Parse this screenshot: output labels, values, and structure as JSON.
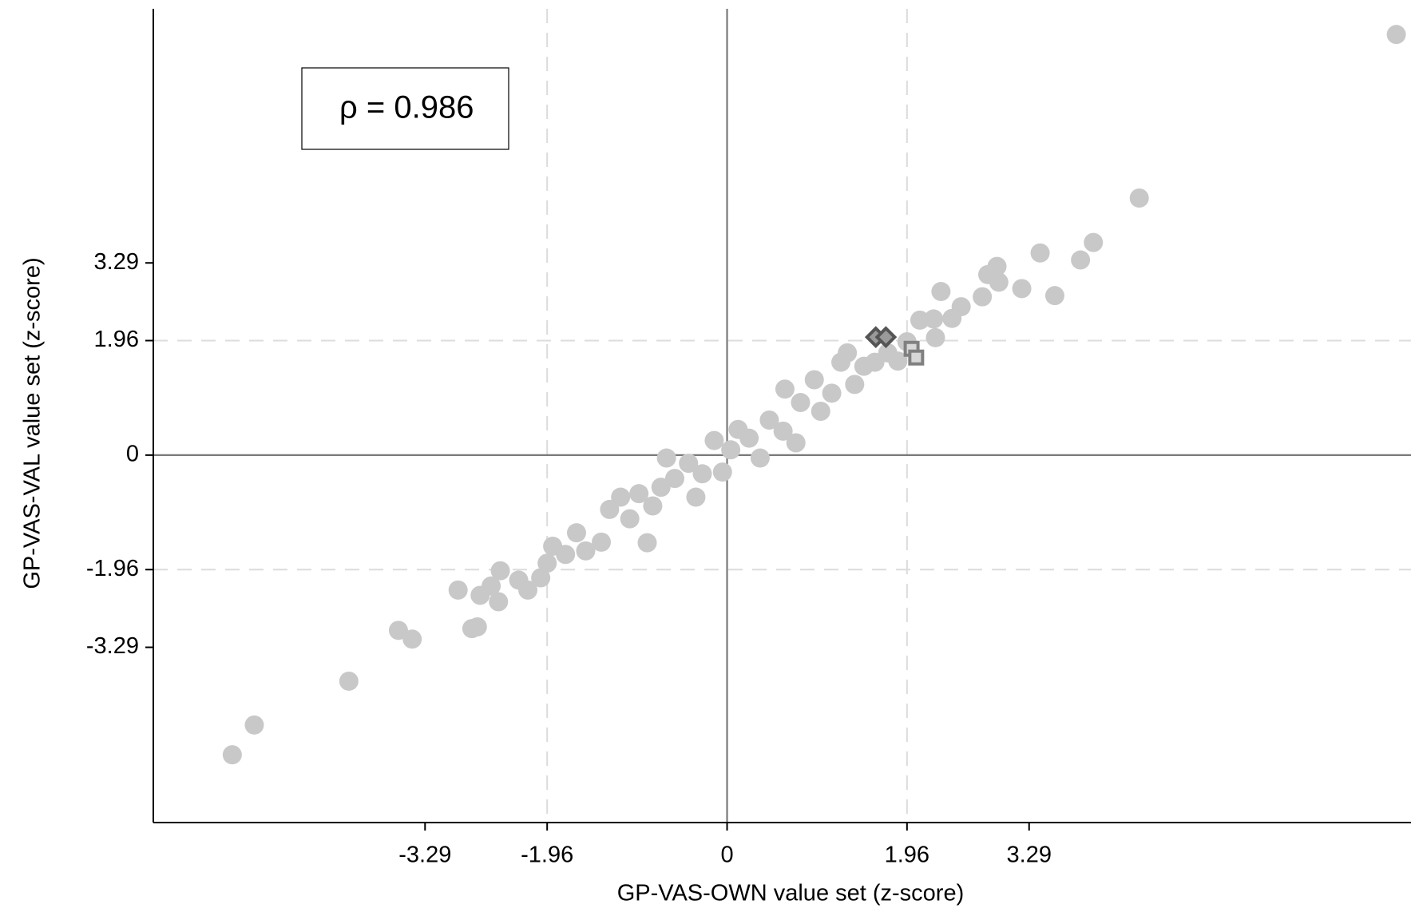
{
  "chart_data": {
    "type": "scatter",
    "x_label": "GP-VAS-OWN value set (z-score)",
    "y_label": "GP-VAS-VAL value set (z-score)",
    "annotation": "ρ = 0.986",
    "xlim": [
      -6.25,
      7.45
    ],
    "ylim": [
      -6.29,
      7.64
    ],
    "xticks": [
      -3.29,
      -1.96,
      0,
      1.96,
      3.29
    ],
    "yticks": [
      -3.29,
      -1.96,
      0,
      1.96,
      3.29
    ],
    "reference_lines": {
      "x": [
        {
          "value": -1.96,
          "style": "dashed"
        },
        {
          "value": 0,
          "style": "solid"
        },
        {
          "value": 1.96,
          "style": "dashed"
        }
      ],
      "y": [
        {
          "value": -1.96,
          "style": "dashed"
        },
        {
          "value": 0,
          "style": "solid"
        },
        {
          "value": 1.96,
          "style": "dashed"
        }
      ]
    },
    "series": [
      {
        "color": "#c8c8c8",
        "marker": "circle",
        "x": [
          -5.39,
          -5.15,
          -4.12,
          -3.58,
          -3.43,
          -2.93,
          -2.78,
          -2.72,
          -2.69,
          -2.57,
          -2.49,
          -2.47,
          -2.27,
          -2.17,
          -2.03,
          -1.96,
          -1.9,
          -1.76,
          -1.64,
          -1.54,
          -1.37,
          -1.28,
          -1.16,
          -1.06,
          -0.87,
          -0.96,
          -0.81,
          -0.66,
          -0.72,
          -0.57,
          -0.42,
          -0.34,
          -0.27,
          -0.14,
          -0.05,
          0.04,
          0.12,
          0.24,
          0.36,
          0.46,
          0.61,
          0.63,
          0.75,
          0.8,
          0.95,
          1.02,
          1.14,
          1.24,
          1.31,
          1.39,
          1.49,
          1.61,
          1.75,
          1.86,
          1.96,
          2.1,
          2.25,
          2.27,
          2.33,
          2.45,
          2.55,
          2.78,
          2.84,
          2.94,
          2.96,
          3.21,
          3.41,
          3.57,
          3.85,
          3.99,
          4.49,
          7.29
        ],
        "values": [
          -5.13,
          -4.62,
          -3.87,
          -3.0,
          -3.15,
          -2.31,
          -2.97,
          -2.94,
          -2.4,
          -2.24,
          -2.51,
          -1.98,
          -2.14,
          -2.31,
          -2.1,
          -1.85,
          -1.56,
          -1.7,
          -1.33,
          -1.64,
          -1.49,
          -0.93,
          -0.72,
          -1.09,
          -1.5,
          -0.66,
          -0.87,
          -0.05,
          -0.55,
          -0.4,
          -0.14,
          -0.72,
          -0.32,
          0.25,
          -0.29,
          0.09,
          0.44,
          0.29,
          -0.05,
          0.6,
          0.41,
          1.13,
          0.21,
          0.9,
          1.29,
          0.75,
          1.06,
          1.59,
          1.75,
          1.21,
          1.52,
          1.59,
          1.75,
          1.61,
          1.94,
          2.31,
          2.33,
          2.01,
          2.8,
          2.34,
          2.54,
          2.71,
          3.09,
          3.23,
          2.96,
          2.85,
          3.46,
          2.73,
          3.34,
          3.64,
          4.4,
          7.2
        ]
      },
      {
        "color": "#555555",
        "marker": "diamond",
        "x": [
          1.62,
          1.73
        ],
        "values": [
          2.02,
          2.02
        ]
      },
      {
        "color": "#808080",
        "marker": "square",
        "x": [
          2.01,
          2.06
        ],
        "values": [
          1.82,
          1.67
        ]
      }
    ]
  }
}
